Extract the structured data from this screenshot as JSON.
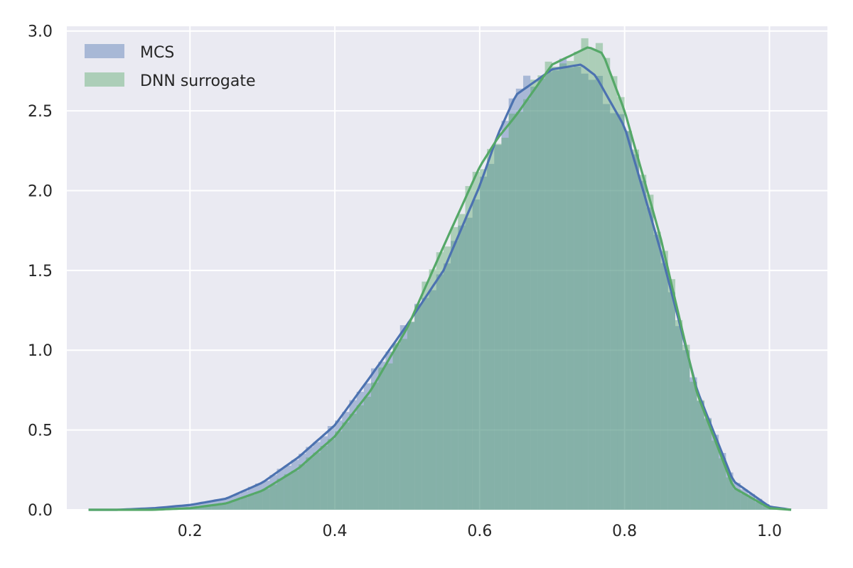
{
  "chart_data": {
    "type": "histogram",
    "title": "",
    "xlabel": "",
    "ylabel": "",
    "xlim": [
      0.03,
      1.08
    ],
    "ylim": [
      0.0,
      3.03
    ],
    "grid": true,
    "legend_placement": "top-left",
    "x_ticks": [
      0.2,
      0.4,
      0.6,
      0.8,
      1.0
    ],
    "y_ticks": [
      0.0,
      0.5,
      1.0,
      1.5,
      2.0,
      2.5,
      3.0
    ],
    "x_tick_labels": [
      "0.2",
      "0.4",
      "0.6",
      "0.8",
      "1.0"
    ],
    "y_tick_labels": [
      "0.0",
      "0.5",
      "1.0",
      "1.5",
      "2.0",
      "2.5",
      "3.0"
    ],
    "colors": {
      "background": "#eaeaf2",
      "grid": "#ffffff",
      "mcs": "#4c72b0",
      "dnn": "#55a868"
    },
    "series": [
      {
        "name": "MCS",
        "kind": "histogram+kde",
        "bin_width": 0.01,
        "kde_x": [
          0.06,
          0.1,
          0.15,
          0.2,
          0.25,
          0.3,
          0.35,
          0.4,
          0.45,
          0.5,
          0.55,
          0.6,
          0.625,
          0.65,
          0.7,
          0.74,
          0.76,
          0.8,
          0.85,
          0.9,
          0.95,
          1.0,
          1.03
        ],
        "kde_y": [
          0.0,
          0.0,
          0.01,
          0.03,
          0.07,
          0.17,
          0.33,
          0.53,
          0.84,
          1.16,
          1.5,
          2.03,
          2.35,
          2.6,
          2.76,
          2.79,
          2.72,
          2.4,
          1.62,
          0.75,
          0.18,
          0.02,
          0.0
        ]
      },
      {
        "name": "DNN surrogate",
        "kind": "histogram+kde",
        "bin_width": 0.01,
        "kde_x": [
          0.06,
          0.1,
          0.15,
          0.2,
          0.25,
          0.3,
          0.35,
          0.4,
          0.45,
          0.5,
          0.55,
          0.6,
          0.625,
          0.65,
          0.7,
          0.75,
          0.77,
          0.8,
          0.85,
          0.9,
          0.95,
          1.0,
          1.03
        ],
        "kde_y": [
          0.0,
          0.0,
          0.0,
          0.01,
          0.04,
          0.12,
          0.26,
          0.46,
          0.75,
          1.14,
          1.65,
          2.15,
          2.33,
          2.47,
          2.79,
          2.9,
          2.86,
          2.5,
          1.7,
          0.73,
          0.14,
          0.01,
          0.0
        ]
      }
    ]
  }
}
